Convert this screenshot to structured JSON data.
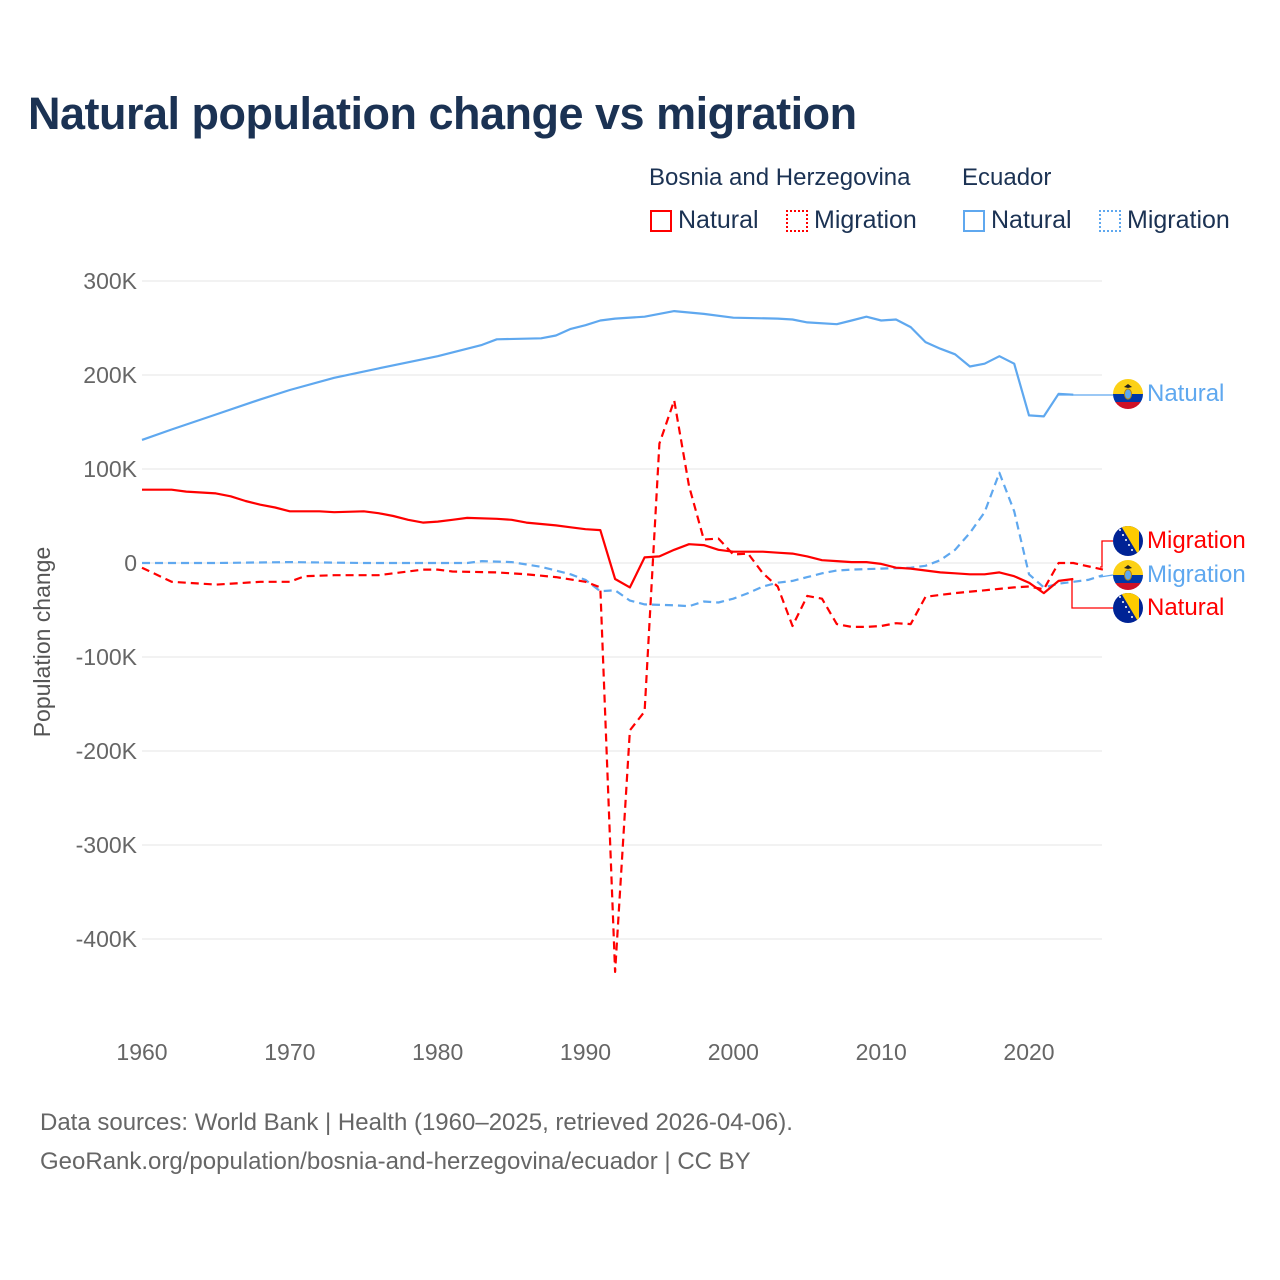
{
  "title": "Natural population change vs migration",
  "legend": {
    "groups": [
      {
        "name": "Bosnia and Herzegovina",
        "items": [
          "Natural",
          "Migration"
        ]
      },
      {
        "name": "Ecuador",
        "items": [
          "Natural",
          "Migration"
        ]
      }
    ]
  },
  "colors": {
    "bih": "#ff0000",
    "ecuador": "#5fa8ef"
  },
  "end_labels": {
    "ecu_natural": "Natural",
    "bih_migration": "Migration",
    "ecu_migration": "Migration",
    "bih_natural": "Natural"
  },
  "footer": {
    "line1": "Data sources: World Bank | Health (1960–2025, retrieved 2026-04-06).",
    "line2": "GeoRank.org/population/bosnia-and-herzegovina/ecuador | CC BY"
  },
  "chart_data": {
    "type": "line",
    "title": "Natural population change vs migration",
    "xlabel": "",
    "ylabel": "Population change",
    "xlim": [
      1960,
      2025
    ],
    "ylim": [
      -470000,
      330000
    ],
    "xticks": [
      1960,
      1970,
      1980,
      1990,
      2000,
      2010,
      2020
    ],
    "xtick_labels": [
      "1960",
      "1970",
      "1980",
      "1990",
      "2000",
      "2010",
      "2020"
    ],
    "yticks": [
      300000,
      200000,
      100000,
      0,
      -100000,
      -200000,
      -300000,
      -400000
    ],
    "ytick_labels": [
      "300K",
      "200K",
      "100K",
      "0",
      "-100K",
      "-200K",
      "-300K",
      "-400K"
    ],
    "grid": true,
    "series": [
      {
        "name": "Ecuador Natural",
        "country": "Ecuador",
        "kind": "Natural",
        "dash": false,
        "color": "#5fa8ef",
        "points": [
          [
            1960,
            131000
          ],
          [
            1962,
            142000
          ],
          [
            1965,
            158000
          ],
          [
            1968,
            174000
          ],
          [
            1970,
            184000
          ],
          [
            1973,
            197000
          ],
          [
            1976,
            207000
          ],
          [
            1980,
            220000
          ],
          [
            1983,
            232000
          ],
          [
            1984,
            238000
          ],
          [
            1987,
            239000
          ],
          [
            1988,
            242000
          ],
          [
            1989,
            249000
          ],
          [
            1990,
            253000
          ],
          [
            1991,
            258000
          ],
          [
            1992,
            260000
          ],
          [
            1994,
            262000
          ],
          [
            1996,
            268000
          ],
          [
            1998,
            265000
          ],
          [
            2000,
            261000
          ],
          [
            2003,
            260000
          ],
          [
            2004,
            259000
          ],
          [
            2005,
            256000
          ],
          [
            2007,
            254000
          ],
          [
            2008,
            258000
          ],
          [
            2009,
            262000
          ],
          [
            2010,
            258000
          ],
          [
            2011,
            259000
          ],
          [
            2012,
            251000
          ],
          [
            2013,
            235000
          ],
          [
            2014,
            228000
          ],
          [
            2015,
            222000
          ],
          [
            2016,
            209000
          ],
          [
            2017,
            212000
          ],
          [
            2018,
            220000
          ],
          [
            2019,
            212000
          ],
          [
            2020,
            157000
          ],
          [
            2021,
            156000
          ],
          [
            2022,
            180000
          ],
          [
            2023,
            179000
          ]
        ]
      },
      {
        "name": "Ecuador Migration",
        "country": "Ecuador",
        "kind": "Migration",
        "dash": true,
        "color": "#5fa8ef",
        "points": [
          [
            1960,
            0
          ],
          [
            1965,
            0
          ],
          [
            1970,
            1000
          ],
          [
            1975,
            0
          ],
          [
            1980,
            0
          ],
          [
            1982,
            0
          ],
          [
            1983,
            2000
          ],
          [
            1985,
            1000
          ],
          [
            1987,
            -4000
          ],
          [
            1989,
            -12000
          ],
          [
            1990,
            -18000
          ],
          [
            1991,
            -30000
          ],
          [
            1992,
            -29000
          ],
          [
            1993,
            -40000
          ],
          [
            1994,
            -44000
          ],
          [
            1996,
            -45000
          ],
          [
            1997,
            -46000
          ],
          [
            1998,
            -41000
          ],
          [
            1999,
            -42000
          ],
          [
            2000,
            -38000
          ],
          [
            2001,
            -32000
          ],
          [
            2002,
            -25000
          ],
          [
            2003,
            -21000
          ],
          [
            2004,
            -19000
          ],
          [
            2005,
            -15000
          ],
          [
            2006,
            -11000
          ],
          [
            2007,
            -8000
          ],
          [
            2008,
            -7000
          ],
          [
            2010,
            -6000
          ],
          [
            2012,
            -5000
          ],
          [
            2013,
            -3000
          ],
          [
            2014,
            3000
          ],
          [
            2015,
            14000
          ],
          [
            2016,
            32000
          ],
          [
            2017,
            54000
          ],
          [
            2018,
            96000
          ],
          [
            2019,
            55000
          ],
          [
            2020,
            -12000
          ],
          [
            2021,
            -26000
          ],
          [
            2022,
            -22000
          ],
          [
            2023,
            -20000
          ],
          [
            2024,
            -18000
          ],
          [
            2025,
            -13000
          ]
        ]
      },
      {
        "name": "Bosnia and Herzegovina Natural",
        "country": "Bosnia and Herzegovina",
        "kind": "Natural",
        "dash": false,
        "color": "#ff0000",
        "points": [
          [
            1960,
            78000
          ],
          [
            1962,
            78000
          ],
          [
            1963,
            76000
          ],
          [
            1965,
            74000
          ],
          [
            1966,
            71000
          ],
          [
            1967,
            66000
          ],
          [
            1968,
            62000
          ],
          [
            1969,
            59000
          ],
          [
            1970,
            55000
          ],
          [
            1972,
            55000
          ],
          [
            1973,
            54000
          ],
          [
            1975,
            55000
          ],
          [
            1976,
            53000
          ],
          [
            1977,
            50000
          ],
          [
            1978,
            46000
          ],
          [
            1979,
            43000
          ],
          [
            1980,
            44000
          ],
          [
            1981,
            46000
          ],
          [
            1982,
            48000
          ],
          [
            1984,
            47000
          ],
          [
            1985,
            46000
          ],
          [
            1986,
            43000
          ],
          [
            1988,
            40000
          ],
          [
            1989,
            38000
          ],
          [
            1990,
            36000
          ],
          [
            1991,
            35000
          ],
          [
            1992,
            -17000
          ],
          [
            1993,
            -26000
          ],
          [
            1994,
            6000
          ],
          [
            1995,
            7000
          ],
          [
            1996,
            14000
          ],
          [
            1997,
            20000
          ],
          [
            1998,
            19000
          ],
          [
            1999,
            14000
          ],
          [
            2000,
            12000
          ],
          [
            2002,
            12000
          ],
          [
            2003,
            11000
          ],
          [
            2004,
            10000
          ],
          [
            2005,
            7000
          ],
          [
            2006,
            3000
          ],
          [
            2007,
            2000
          ],
          [
            2008,
            1000
          ],
          [
            2009,
            1000
          ],
          [
            2010,
            -1000
          ],
          [
            2011,
            -5000
          ],
          [
            2012,
            -6000
          ],
          [
            2013,
            -8000
          ],
          [
            2014,
            -10000
          ],
          [
            2015,
            -11000
          ],
          [
            2016,
            -12000
          ],
          [
            2017,
            -12000
          ],
          [
            2018,
            -10000
          ],
          [
            2019,
            -14000
          ],
          [
            2020,
            -21000
          ],
          [
            2021,
            -32000
          ],
          [
            2022,
            -19000
          ],
          [
            2023,
            -17000
          ]
        ]
      },
      {
        "name": "Bosnia and Herzegovina Migration",
        "country": "Bosnia and Herzegovina",
        "kind": "Migration",
        "dash": true,
        "color": "#ff0000",
        "points": [
          [
            1960,
            -5000
          ],
          [
            1962,
            -20000
          ],
          [
            1965,
            -23000
          ],
          [
            1968,
            -20000
          ],
          [
            1970,
            -20000
          ],
          [
            1971,
            -14000
          ],
          [
            1973,
            -13000
          ],
          [
            1976,
            -13000
          ],
          [
            1978,
            -9000
          ],
          [
            1979,
            -7000
          ],
          [
            1980,
            -7000
          ],
          [
            1981,
            -9000
          ],
          [
            1984,
            -10000
          ],
          [
            1986,
            -12000
          ],
          [
            1988,
            -15000
          ],
          [
            1990,
            -20000
          ],
          [
            1991,
            -26000
          ],
          [
            1992,
            -435000
          ],
          [
            1993,
            -178000
          ],
          [
            1994,
            -158000
          ],
          [
            1995,
            127000
          ],
          [
            1996,
            173000
          ],
          [
            1997,
            82000
          ],
          [
            1998,
            25000
          ],
          [
            1999,
            26000
          ],
          [
            2000,
            9000
          ],
          [
            2001,
            10000
          ],
          [
            2002,
            -11000
          ],
          [
            2003,
            -25000
          ],
          [
            2004,
            -67000
          ],
          [
            2005,
            -35000
          ],
          [
            2006,
            -38000
          ],
          [
            2007,
            -65000
          ],
          [
            2008,
            -68000
          ],
          [
            2009,
            -68000
          ],
          [
            2010,
            -67000
          ],
          [
            2011,
            -64000
          ],
          [
            2012,
            -65000
          ],
          [
            2013,
            -36000
          ],
          [
            2015,
            -32000
          ],
          [
            2017,
            -29000
          ],
          [
            2019,
            -26000
          ],
          [
            2020,
            -25000
          ],
          [
            2021,
            -28000
          ],
          [
            2022,
            0
          ],
          [
            2023,
            0
          ],
          [
            2025,
            -7000
          ]
        ]
      }
    ]
  }
}
